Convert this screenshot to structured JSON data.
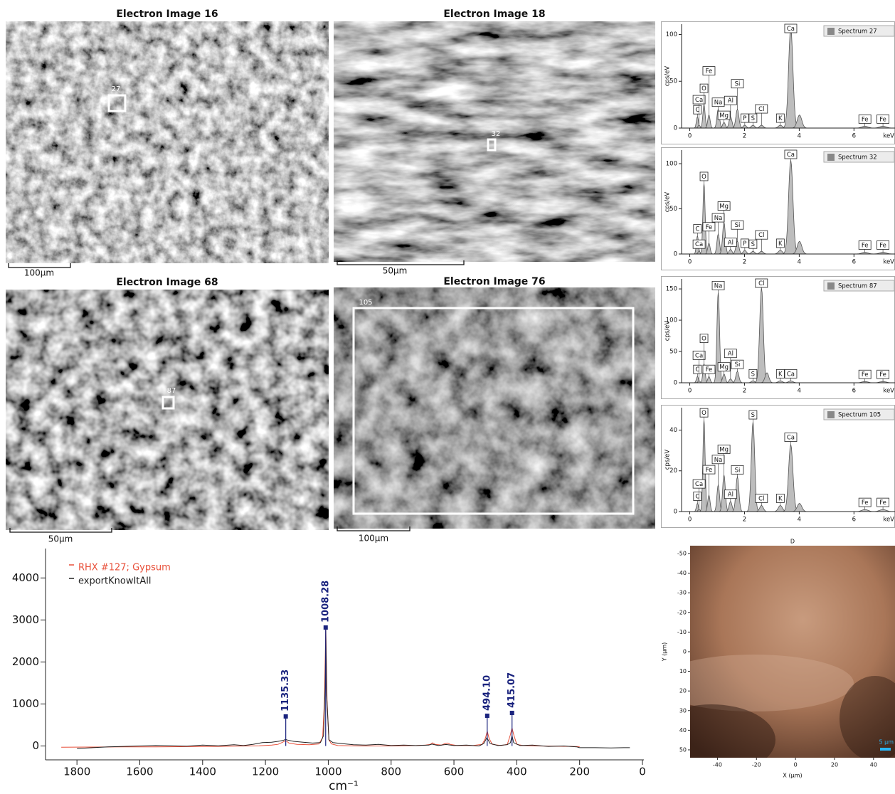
{
  "images": [
    {
      "title": "Electron Image 16",
      "scale_label": "100µm",
      "spot_label": "27"
    },
    {
      "title": "Electron Image 18",
      "scale_label": "50µm",
      "spot_label": "32"
    },
    {
      "title": "Electron Image 68",
      "scale_label": "50µm",
      "spot_label": "87"
    },
    {
      "title": "Electron Image 76",
      "scale_label": "100µm",
      "spot_label": "105"
    }
  ],
  "chart_data": [
    {
      "type": "spectrum",
      "title": "Spectrum 27",
      "xlabel": "keV",
      "ylabel": "cps/eV",
      "color": "#bdbdbd",
      "xlim": [
        -0.3,
        7.5
      ],
      "ylim": [
        0,
        111
      ],
      "xticks": [
        0,
        2,
        4,
        6
      ],
      "yticks": [
        0,
        50,
        100
      ],
      "categories": [
        "C",
        "Ca",
        "O",
        "Fe",
        "Na",
        "Mg",
        "Al",
        "Si",
        "P",
        "S",
        "Cl",
        "K",
        "Ca",
        null,
        "Fe",
        "Fe"
      ],
      "x": [
        0.28,
        0.34,
        0.52,
        0.7,
        1.04,
        1.25,
        1.49,
        1.74,
        2.01,
        2.31,
        2.62,
        3.31,
        3.69,
        4.01,
        6.4,
        7.06
      ],
      "values": [
        12,
        3,
        25,
        14,
        20,
        6,
        12,
        20,
        3,
        3,
        3,
        3,
        107,
        14,
        2,
        2
      ]
    },
    {
      "type": "spectrum",
      "title": "Spectrum 32",
      "xlabel": "keV",
      "ylabel": "cps/eV",
      "color": "#bdbdbd",
      "xlim": [
        -0.3,
        7.5
      ],
      "ylim": [
        0,
        115
      ],
      "xticks": [
        0,
        2,
        4,
        6
      ],
      "yticks": [
        0,
        50,
        100
      ],
      "categories": [
        "C",
        "Ca",
        "O",
        "Fe",
        "Na",
        "Mg",
        "Al",
        "Si",
        "P",
        "S",
        "Cl",
        "K",
        "Ca",
        null,
        "Fe",
        "Fe"
      ],
      "x": [
        0.28,
        0.34,
        0.52,
        0.7,
        1.04,
        1.25,
        1.49,
        1.74,
        2.01,
        2.31,
        2.62,
        3.31,
        3.69,
        4.01,
        6.4,
        7.06
      ],
      "values": [
        20,
        3,
        78,
        12,
        22,
        35,
        5,
        14,
        4,
        3,
        3,
        4,
        104,
        14,
        2,
        2
      ]
    },
    {
      "type": "spectrum",
      "title": "Spectrum 87",
      "xlabel": "keV",
      "ylabel": "cps/eV",
      "color": "#bdbdbd",
      "xlim": [
        -0.3,
        7.5
      ],
      "ylim": [
        0,
        166
      ],
      "xticks": [
        0,
        2,
        4,
        6
      ],
      "yticks": [
        0,
        50,
        100,
        150
      ],
      "categories": [
        "C",
        "Ca",
        "O",
        "Fe",
        "Na",
        "Mg",
        "Al",
        "Si",
        "S",
        "Cl",
        null,
        "K",
        "Ca",
        "Fe",
        "Fe"
      ],
      "x": [
        0.28,
        0.34,
        0.52,
        0.7,
        1.04,
        1.25,
        1.49,
        1.74,
        2.31,
        2.62,
        2.82,
        3.31,
        3.69,
        6.4,
        7.06
      ],
      "values": [
        10,
        3,
        30,
        10,
        144,
        14,
        6,
        18,
        3,
        152,
        16,
        3,
        3,
        2,
        2
      ]
    },
    {
      "type": "spectrum",
      "title": "Spectrum 105",
      "xlabel": "keV",
      "ylabel": "cps/eV",
      "color": "#bdbdbd",
      "xlim": [
        -0.3,
        7.5
      ],
      "ylim": [
        0,
        51
      ],
      "xticks": [
        0,
        2,
        4,
        6
      ],
      "yticks": [
        0,
        20,
        40
      ],
      "categories": [
        "C",
        "Ca",
        "O",
        "Fe",
        "Na",
        "Mg",
        "Al",
        "Si",
        "S",
        "Cl",
        "K",
        "Ca",
        null,
        "Fe",
        "Fe"
      ],
      "x": [
        0.28,
        0.34,
        0.52,
        0.7,
        1.04,
        1.25,
        1.49,
        1.74,
        2.31,
        2.62,
        3.31,
        3.69,
        4.01,
        6.4,
        7.06
      ],
      "values": [
        4,
        1,
        45,
        8,
        13,
        18,
        5,
        17,
        44,
        3,
        3,
        33,
        4,
        1,
        1
      ]
    },
    {
      "type": "line",
      "xlabel": "cm⁻¹",
      "xlim": [
        1900,
        0
      ],
      "ylim": [
        -330,
        4700
      ],
      "xticks": [
        1800,
        1600,
        1400,
        1200,
        1000,
        800,
        600,
        400,
        200,
        0
      ],
      "yticks": [
        0,
        1000,
        2000,
        3000,
        4000
      ],
      "peak_labels": [
        {
          "value": 1135.33,
          "label": "1135.33"
        },
        {
          "value": 1008.28,
          "label": "1008.28"
        },
        {
          "value": 494.1,
          "label": "494.10"
        },
        {
          "value": 415.07,
          "label": "415.07"
        }
      ],
      "series": [
        {
          "name": "RHX #127; Gypsum",
          "color": "#e8503a",
          "x": [
            1850,
            1750,
            1650,
            1550,
            1450,
            1350,
            1300,
            1260,
            1220,
            1180,
            1160,
            1145,
            1138,
            1135,
            1132,
            1125,
            1100,
            1060,
            1030,
            1018,
            1012,
            1008,
            1004,
            998,
            990,
            970,
            900,
            800,
            720,
            690,
            675,
            668,
            660,
            640,
            628,
            620,
            612,
            590,
            540,
            510,
            500,
            494,
            488,
            478,
            450,
            430,
            421,
            415,
            409,
            400,
            380,
            330,
            280,
            230,
            200
          ],
          "values": [
            -30,
            -25,
            -20,
            -20,
            -15,
            -10,
            -5,
            0,
            5,
            20,
            40,
            90,
            120,
            125,
            110,
            70,
            40,
            30,
            50,
            200,
            1100,
            2870,
            1100,
            150,
            50,
            10,
            0,
            0,
            10,
            20,
            40,
            75,
            40,
            20,
            60,
            70,
            40,
            10,
            10,
            40,
            180,
            355,
            180,
            40,
            10,
            40,
            250,
            430,
            250,
            40,
            10,
            0,
            -5,
            -10,
            -15
          ]
        },
        {
          "name": "exportKnowItAll",
          "color": "#222222",
          "x": [
            1800,
            1750,
            1700,
            1650,
            1600,
            1550,
            1500,
            1450,
            1400,
            1350,
            1300,
            1270,
            1240,
            1210,
            1180,
            1160,
            1145,
            1138,
            1135,
            1130,
            1110,
            1080,
            1050,
            1025,
            1015,
            1010,
            1008,
            1005,
            998,
            985,
            960,
            920,
            880,
            840,
            800,
            760,
            720,
            680,
            670,
            650,
            625,
            600,
            560,
            520,
            505,
            495,
            485,
            460,
            430,
            420,
            415,
            410,
            390,
            350,
            300,
            250,
            210,
            200,
            150,
            100,
            60,
            40
          ],
          "values": [
            -60,
            -40,
            -20,
            -10,
            0,
            10,
            5,
            -5,
            20,
            5,
            30,
            10,
            40,
            80,
            90,
            110,
            130,
            150,
            155,
            140,
            110,
            90,
            70,
            80,
            250,
            1400,
            2750,
            1200,
            150,
            80,
            60,
            30,
            20,
            40,
            10,
            20,
            10,
            20,
            45,
            10,
            35,
            10,
            20,
            0,
            60,
            200,
            60,
            10,
            30,
            80,
            250,
            80,
            10,
            20,
            -10,
            0,
            -20,
            -40,
            -40,
            -45,
            -40,
            -40
          ]
        }
      ]
    },
    {
      "type": "image",
      "title": "D",
      "xlabel": "X (µm)",
      "ylabel": "Y (µm)",
      "scale_label": "5 µm",
      "xlim": [
        -54,
        51
      ],
      "ylim": [
        -54,
        54
      ],
      "xticks": [
        -40,
        -20,
        0,
        20,
        40
      ],
      "yticks": [
        -50,
        -40,
        -30,
        -20,
        -10,
        0,
        10,
        20,
        30,
        40,
        50
      ]
    }
  ]
}
